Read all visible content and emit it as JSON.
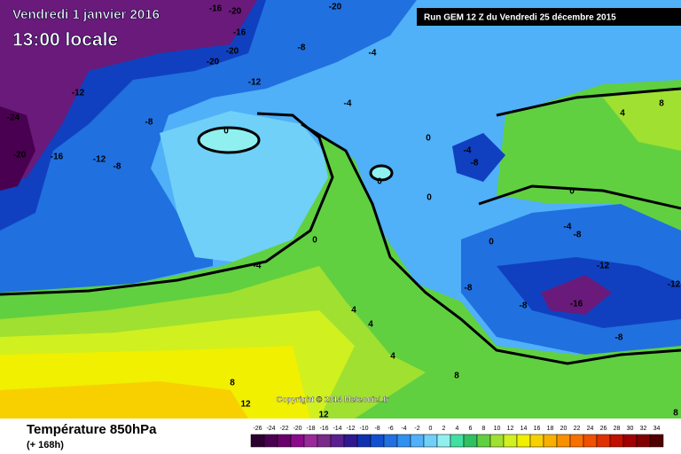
{
  "header": {
    "date": "Vendredi 1 janvier 2016",
    "time": "13:00 locale",
    "run": "Run GEM 12 Z du Vendredi 25 décembre 2015"
  },
  "footer": {
    "title": "Température 850hPa",
    "lead": "(+ 168h)",
    "copyright": "Copyright © 2014 Meteociel.fr"
  },
  "map": {
    "labels": [
      -16,
      -20,
      -20,
      -16,
      -8,
      -20,
      -20,
      -12,
      -4,
      -4,
      -12,
      -8,
      -24,
      -20,
      -16,
      -12,
      -8,
      0,
      0,
      -4,
      -8,
      4,
      8,
      0,
      0,
      0,
      -4,
      -8,
      0,
      0,
      -4,
      -12,
      -12,
      -8,
      -8,
      -16,
      4,
      4,
      -8,
      4,
      8,
      8,
      12,
      12,
      8
    ]
  },
  "colorbar": {
    "ticks": [
      -26,
      -24,
      -22,
      -20,
      -18,
      -16,
      -14,
      -12,
      -10,
      -8,
      -6,
      -4,
      -2,
      0,
      2,
      4,
      6,
      8,
      10,
      12,
      14,
      16,
      18,
      20,
      22,
      24,
      26,
      28,
      30,
      32,
      34
    ],
    "colors": [
      "#2b0030",
      "#4a0050",
      "#6a006a",
      "#8a0a8a",
      "#9a2a9a",
      "#7a2a8a",
      "#5a2090",
      "#301890",
      "#1030b0",
      "#1050d0",
      "#2070e0",
      "#3090f0",
      "#50b0f8",
      "#70d0f8",
      "#90f0f0",
      "#40e0a0",
      "#30c060",
      "#60d040",
      "#a0e030",
      "#d0f020",
      "#f0f000",
      "#f8d000",
      "#f8b000",
      "#f89000",
      "#f87000",
      "#f05000",
      "#e03000",
      "#c01000",
      "#a00000",
      "#800000",
      "#500000"
    ]
  }
}
